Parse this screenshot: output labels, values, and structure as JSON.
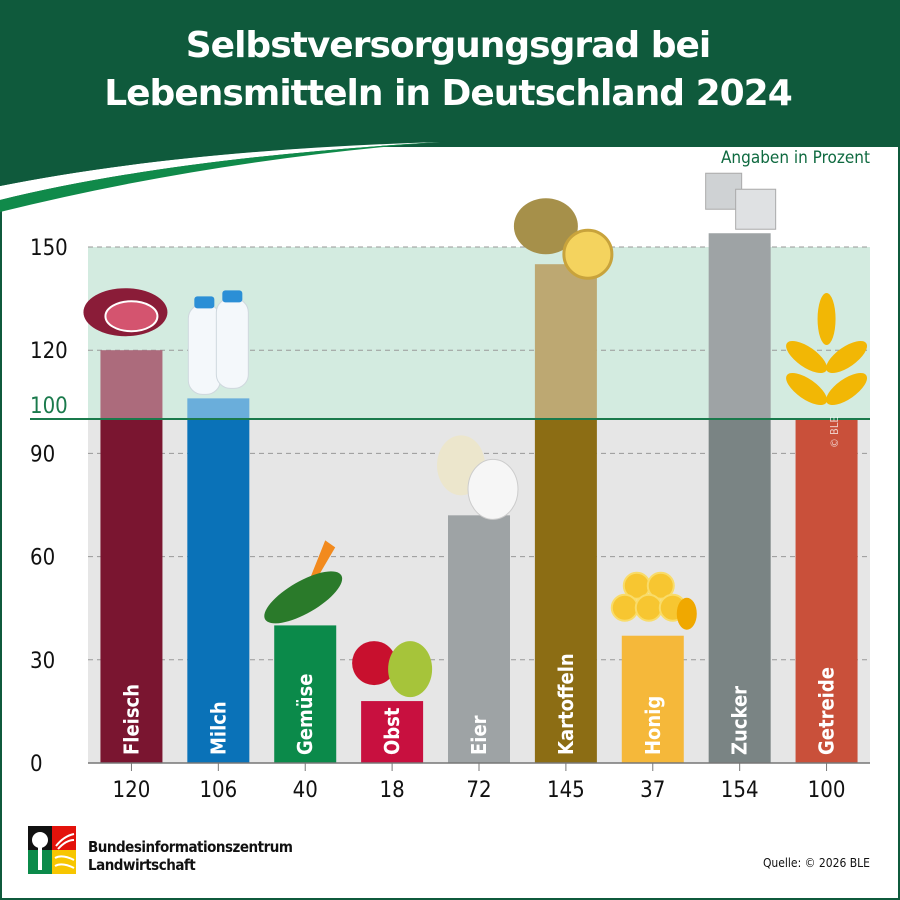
{
  "title_lines": [
    "Selbstversorgungsgrad bei",
    "Lebensmitteln in Deutschland 2024"
  ],
  "unit_note": "Angaben in Prozent",
  "source": "Quelle: © 2026 BLE",
  "watermark": "© BLE",
  "logo": {
    "line1": "Bundesinformationszentrum",
    "line2": "Landwirtschaft"
  },
  "colors": {
    "header": "#0f5a3c",
    "above100_band": "#d3ebe0",
    "below100_band": "#e6e6e6",
    "reference_line": "#1a7a4c"
  },
  "chart_data": {
    "type": "bar",
    "title": "Selbstversorgungsgrad bei Lebensmitteln in Deutschland 2024",
    "ylabel": "Angaben in Prozent",
    "ylim": [
      0,
      160
    ],
    "yticks": [
      0,
      30,
      60,
      90,
      100,
      120,
      150
    ],
    "reference_line": 100,
    "grid": true,
    "categories": [
      "Fleisch",
      "Milch",
      "Gemüse",
      "Obst",
      "Eier",
      "Kartoffeln",
      "Honig",
      "Zucker",
      "Getreide"
    ],
    "values": [
      120,
      106,
      40,
      18,
      72,
      145,
      37,
      154,
      100
    ],
    "bar_colors": [
      "#7a1530",
      "#0a72b8",
      "#0b8a4a",
      "#c8103f",
      "#9ea3a5",
      "#8c6d14",
      "#f5b83a",
      "#7a8484",
      "#c9503a"
    ],
    "bar_colors_above100": [
      "#ac6b7c",
      "#6aaedb",
      "#0b8a4a",
      "#c8103f",
      "#9ea3a5",
      "#bda872",
      "#f5b83a",
      "#9ea3a5",
      "#c9503a"
    ],
    "icons": [
      "meat-icon",
      "milk-bottles-icon",
      "vegetables-icon",
      "fruit-icon",
      "eggs-icon",
      "potatoes-icon",
      "honeycomb-icon",
      "sugar-cubes-icon",
      "wheat-icon"
    ]
  }
}
